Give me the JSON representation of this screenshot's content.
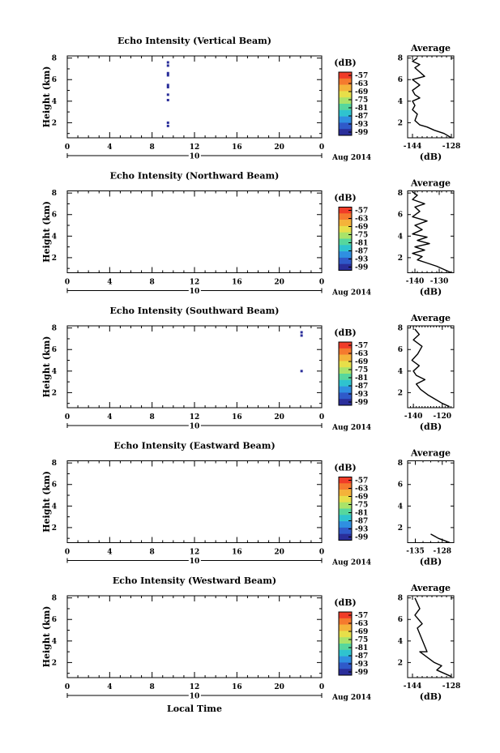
{
  "xlabel_bottom": "Local Time",
  "date": {
    "day": "10",
    "month_year": "Aug 2014"
  },
  "colorbar": {
    "unit": "(dB)",
    "ticks": [
      "-57",
      "-63",
      "-69",
      "-75",
      "-81",
      "-87",
      "-93",
      "-99"
    ],
    "colors": [
      "#f03c28",
      "#f57a2e",
      "#f4b33a",
      "#e7df4a",
      "#a9e36a",
      "#56d79d",
      "#2fc3cf",
      "#2f8fe1",
      "#2f59c9",
      "#2a2e9a"
    ]
  },
  "chart_data": [
    {
      "type": "heatmap",
      "title": "Echo Intensity (Vertical Beam)",
      "ylabel": "Height (km)",
      "xticks": [
        "0",
        "4",
        "8",
        "12",
        "16",
        "20",
        "0"
      ],
      "yticks": [
        "2",
        "4",
        "6",
        "8"
      ],
      "xlim": [
        0,
        24
      ],
      "ylim": [
        0.6,
        8.2
      ],
      "echoes": [
        {
          "t": 9.5,
          "h": 7.6,
          "c": "#2a2e9a"
        },
        {
          "t": 9.5,
          "h": 7.3,
          "c": "#2a2e9a"
        },
        {
          "t": 9.5,
          "h": 6.6,
          "c": "#2a2e9a"
        },
        {
          "t": 9.5,
          "h": 6.4,
          "c": "#2a2e9a"
        },
        {
          "t": 9.5,
          "h": 5.5,
          "c": "#2a2e9a"
        },
        {
          "t": 9.5,
          "h": 5.3,
          "c": "#2a2e9a"
        },
        {
          "t": 9.5,
          "h": 4.6,
          "c": "#2a2e9a"
        },
        {
          "t": 9.5,
          "h": 4.1,
          "c": "#2a2e9a"
        },
        {
          "t": 9.5,
          "h": 2.0,
          "c": "#2a2e9a"
        },
        {
          "t": 9.5,
          "h": 1.7,
          "c": "#2a2e9a"
        }
      ],
      "average": {
        "title": "Average",
        "xlabel": "(dB)",
        "xticks": [
          "-144",
          "-128"
        ],
        "xlim": [
          -146,
          -127
        ],
        "yticks": [
          "2",
          "4",
          "6",
          "8"
        ],
        "ylim": [
          0.6,
          8.2
        ],
        "x": [
          -128,
          -131,
          -135,
          -138,
          -141,
          -143,
          -142,
          -144,
          -143,
          -144,
          -141,
          -143,
          -144,
          -141,
          -144,
          -139,
          -141,
          -143,
          -141,
          -144,
          -142
        ],
        "y": [
          0.6,
          1.0,
          1.3,
          1.6,
          1.8,
          2.2,
          2.8,
          3.2,
          3.6,
          4.0,
          4.3,
          4.6,
          5.0,
          5.5,
          6.0,
          6.3,
          6.7,
          7.1,
          7.4,
          7.7,
          8.0
        ]
      }
    },
    {
      "type": "heatmap",
      "title": "Echo Intensity (Northward Beam)",
      "ylabel": "Height (km)",
      "xticks": [
        "0",
        "4",
        "8",
        "12",
        "16",
        "20",
        "0"
      ],
      "yticks": [
        "2",
        "4",
        "6",
        "8"
      ],
      "xlim": [
        0,
        24
      ],
      "ylim": [
        0.6,
        8.2
      ],
      "echoes": [],
      "average": {
        "title": "Average",
        "xlabel": "(dB)",
        "xticks": [
          "-140",
          "-130"
        ],
        "xlim": [
          -143,
          -124
        ],
        "yticks": [
          "2",
          "4",
          "6",
          "8"
        ],
        "ylim": [
          0.6,
          8.2
        ],
        "x": [
          -125,
          -128,
          -131,
          -135,
          -139,
          -137,
          -141,
          -136,
          -140,
          -134,
          -139,
          -135,
          -141,
          -137,
          -140,
          -135,
          -141,
          -138,
          -140,
          -136,
          -141,
          -139,
          -141
        ],
        "y": [
          0.6,
          0.9,
          1.2,
          1.5,
          1.8,
          2.1,
          2.4,
          2.7,
          3.0,
          3.3,
          3.6,
          3.9,
          4.2,
          4.6,
          5.0,
          5.4,
          5.8,
          6.3,
          6.7,
          7.0,
          7.4,
          7.8,
          8.1
        ]
      }
    },
    {
      "type": "heatmap",
      "title": "Echo Intensity (Southward Beam)",
      "ylabel": "Height (km)",
      "xticks": [
        "0",
        "4",
        "8",
        "12",
        "16",
        "20",
        "0"
      ],
      "yticks": [
        "2",
        "4",
        "6",
        "8"
      ],
      "xlim": [
        0,
        24
      ],
      "ylim": [
        0.6,
        8.2
      ],
      "echoes": [
        {
          "t": 22.1,
          "h": 7.6,
          "c": "#2a2e9a"
        },
        {
          "t": 22.1,
          "h": 7.3,
          "c": "#2a2e9a"
        },
        {
          "t": 22.1,
          "h": 4.0,
          "c": "#2a2e9a"
        }
      ],
      "average": {
        "title": "Average",
        "xlabel": "(dB)",
        "xticks": [
          "-140",
          "-120"
        ],
        "xlim": [
          -144,
          -112
        ],
        "yticks": [
          "2",
          "4",
          "6",
          "8"
        ],
        "ylim": [
          0.6,
          8.2
        ],
        "x": [
          -115,
          -120,
          -125,
          -130,
          -135,
          -138,
          -132,
          -138,
          -140,
          -136,
          -141,
          -137,
          -134,
          -140,
          -136,
          -139
        ],
        "y": [
          0.7,
          1.0,
          1.4,
          1.8,
          2.3,
          2.8,
          3.2,
          3.6,
          4.0,
          4.5,
          5.0,
          5.6,
          6.3,
          6.9,
          7.4,
          7.9
        ]
      }
    },
    {
      "type": "heatmap",
      "title": "Echo Intensity (Eastward Beam)",
      "ylabel": "Height (km)",
      "xticks": [
        "0",
        "4",
        "8",
        "12",
        "16",
        "20",
        "0"
      ],
      "yticks": [
        "2",
        "4",
        "6",
        "8"
      ],
      "xlim": [
        0,
        24
      ],
      "ylim": [
        0.6,
        8.2
      ],
      "echoes": [],
      "average": {
        "title": "Average",
        "xlabel": "(dB)",
        "xticks": [
          "-135",
          "-128"
        ],
        "xlim": [
          -137,
          -125
        ],
        "yticks": [
          "2",
          "4",
          "6",
          "8"
        ],
        "ylim": [
          0.6,
          8.2
        ],
        "x": [
          -126.0,
          -127.5,
          -129.0,
          -130.0,
          -131.0
        ],
        "y": [
          0.6,
          0.8,
          1.0,
          1.2,
          1.4
        ]
      }
    },
    {
      "type": "heatmap",
      "title": "Echo Intensity (Westward Beam)",
      "ylabel": "Height (km)",
      "xticks": [
        "0",
        "4",
        "8",
        "12",
        "16",
        "20",
        "0"
      ],
      "yticks": [
        "2",
        "4",
        "6",
        "8"
      ],
      "xlim": [
        0,
        24
      ],
      "ylim": [
        0.6,
        8.2
      ],
      "echoes": [],
      "average": {
        "title": "Average",
        "xlabel": "(dB)",
        "xticks": [
          "-144",
          "-128"
        ],
        "xlim": [
          -146,
          -127
        ],
        "yticks": [
          "2",
          "4",
          "6",
          "8"
        ],
        "ylim": [
          0.6,
          8.2
        ],
        "x": [
          -128,
          -131,
          -134,
          -132,
          -135,
          -141,
          -138,
          -142,
          -140,
          -143,
          -141,
          -142,
          -143
        ],
        "y": [
          0.7,
          1.0,
          1.3,
          1.7,
          2.0,
          3.0,
          3.0,
          5.2,
          5.6,
          6.4,
          7.0,
          7.5,
          8.0
        ]
      }
    }
  ]
}
